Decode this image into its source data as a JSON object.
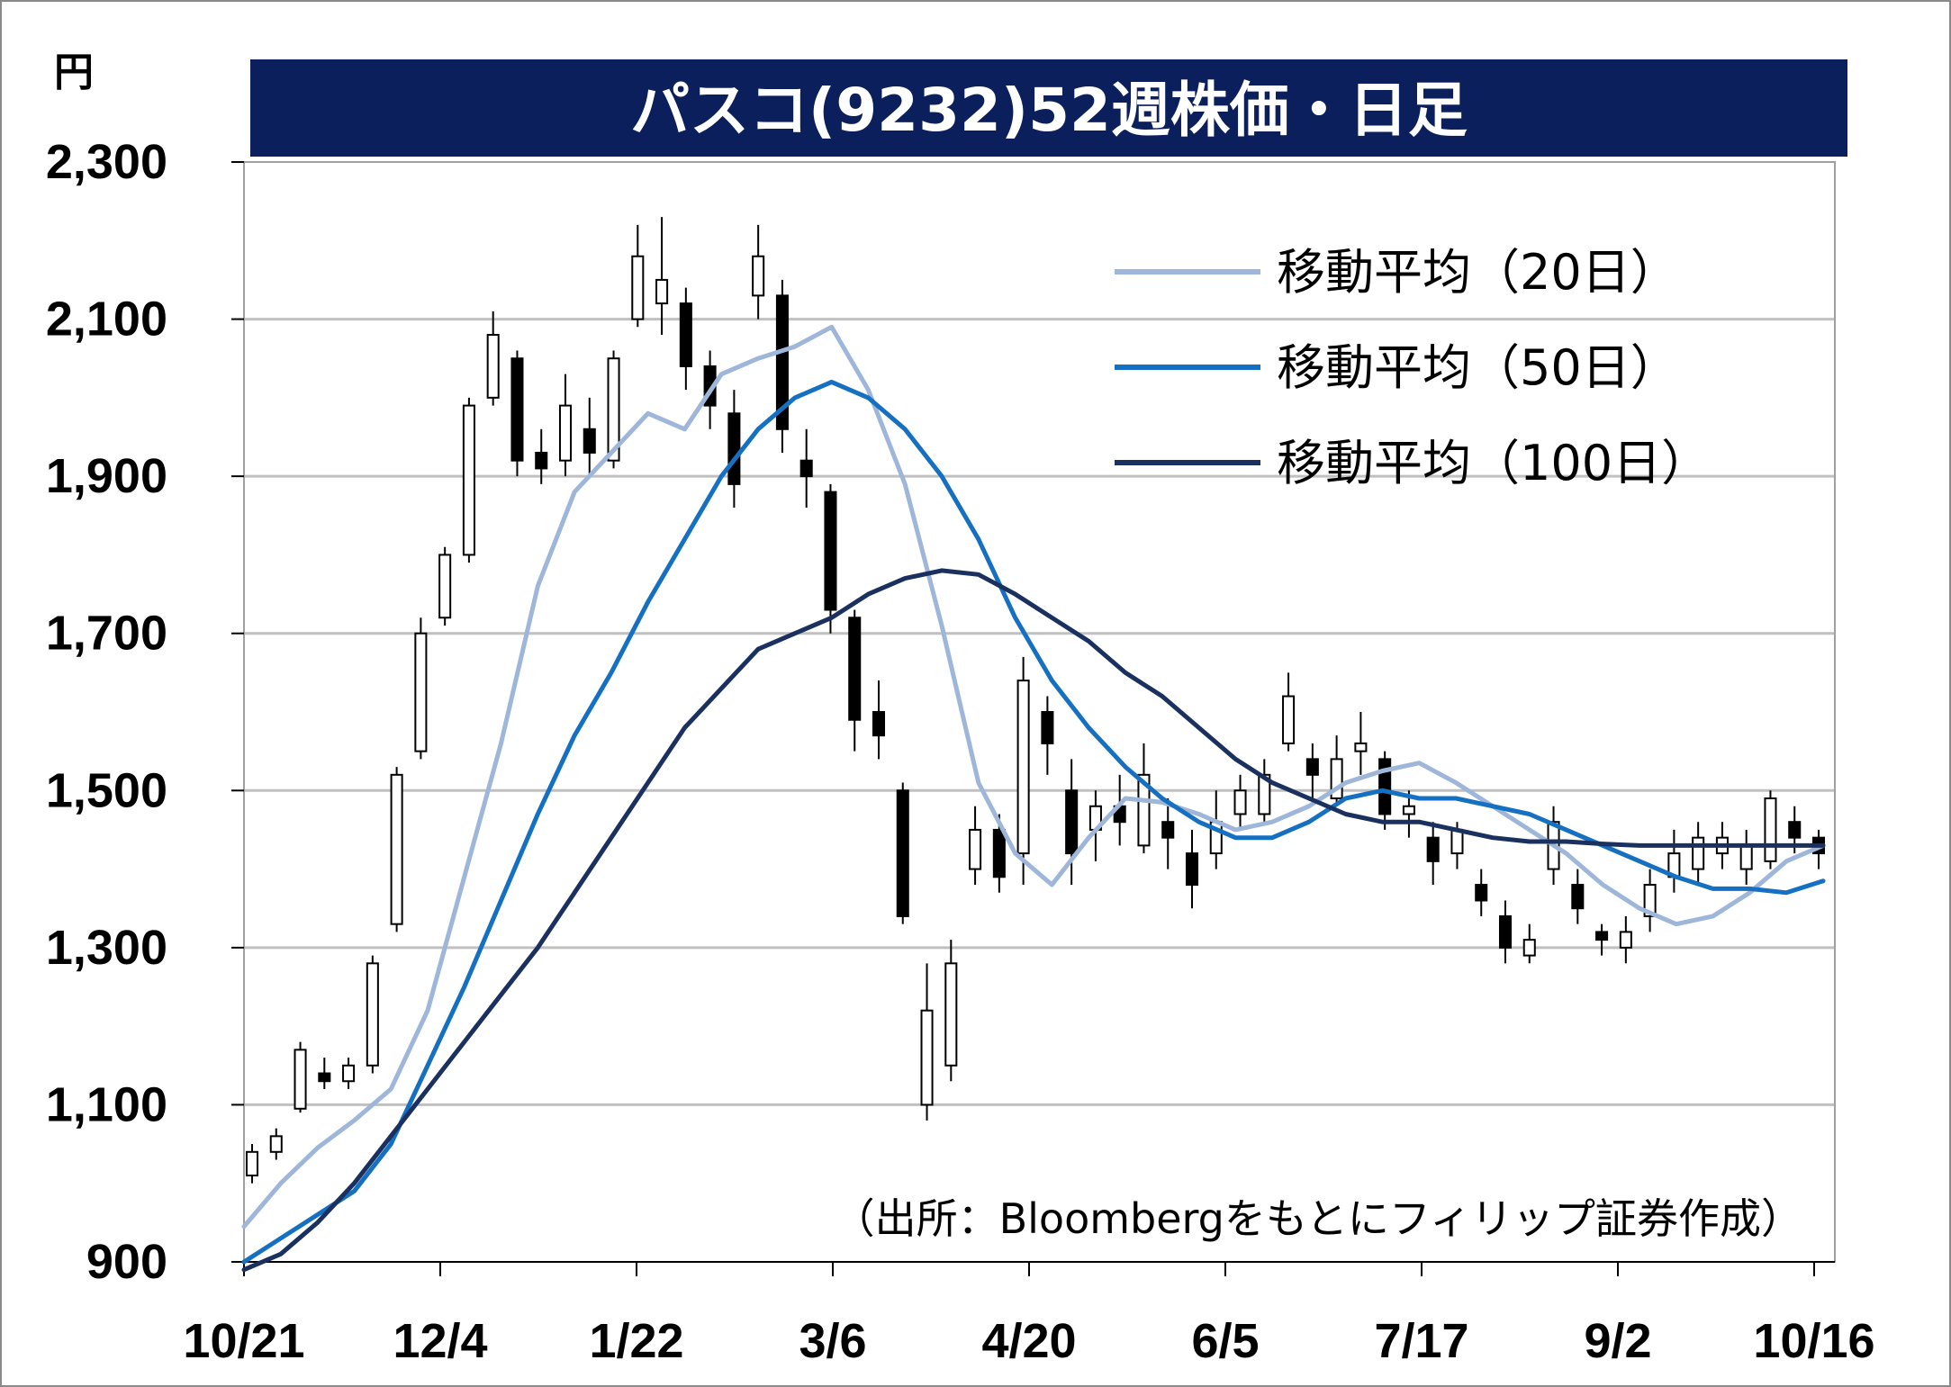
{
  "chart_data": {
    "type": "candlestick",
    "title": "パスコ(9232)52週株価・日足",
    "ylabel": "円",
    "source": "（出所：Bloombergをもとにフィリップ証券作成）",
    "ylim": [
      900,
      2300
    ],
    "y_ticks": [
      "2,300",
      "2,100",
      "1,900",
      "1,700",
      "1,500",
      "1,300",
      "1,100",
      "900"
    ],
    "x_ticks": [
      "10/21",
      "12/4",
      "1/22",
      "3/6",
      "4/20",
      "6/5",
      "7/17",
      "9/2",
      "10/16"
    ],
    "grid": true,
    "legend_position": "top-right",
    "colors": {
      "title_bg": "#0b1f5c",
      "ma20": "#9db6d9",
      "ma50": "#1670c1",
      "ma100": "#1a3160",
      "candle_up_fill": "#ffffff",
      "candle_down_fill": "#000000",
      "grid": "#c0c0c0"
    },
    "series": [
      {
        "name": "移動平均（20日）",
        "key": "ma20",
        "values": [
          945,
          1000,
          1045,
          1080,
          1120,
          1220,
          1390,
          1560,
          1760,
          1880,
          1930,
          1980,
          1960,
          2030,
          2050,
          2065,
          2090,
          2010,
          1890,
          1710,
          1510,
          1420,
          1380,
          1440,
          1490,
          1485,
          1470,
          1450,
          1460,
          1480,
          1510,
          1525,
          1535,
          1510,
          1480,
          1450,
          1420,
          1380,
          1350,
          1330,
          1340,
          1370,
          1410,
          1430
        ]
      },
      {
        "name": "移動平均（50日）",
        "key": "ma50",
        "values": [
          900,
          930,
          960,
          990,
          1050,
          1150,
          1250,
          1360,
          1470,
          1570,
          1650,
          1740,
          1820,
          1900,
          1960,
          2000,
          2020,
          2000,
          1960,
          1900,
          1820,
          1720,
          1640,
          1580,
          1530,
          1490,
          1460,
          1440,
          1440,
          1460,
          1490,
          1500,
          1490,
          1490,
          1480,
          1470,
          1450,
          1430,
          1410,
          1390,
          1375,
          1375,
          1370,
          1385
        ]
      },
      {
        "name": "移動平均（100日）",
        "key": "ma100",
        "values": [
          890,
          910,
          950,
          1000,
          1060,
          1120,
          1180,
          1240,
          1300,
          1370,
          1440,
          1510,
          1580,
          1630,
          1680,
          1700,
          1720,
          1750,
          1770,
          1780,
          1775,
          1750,
          1720,
          1690,
          1650,
          1620,
          1580,
          1540,
          1510,
          1490,
          1470,
          1460,
          1460,
          1450,
          1440,
          1435,
          1435,
          1432,
          1430,
          1430,
          1430,
          1430,
          1430,
          1430
        ]
      }
    ],
    "candles": [
      [
        1010,
        1040,
        1000,
        1050
      ],
      [
        1040,
        1060,
        1030,
        1070
      ],
      [
        1095,
        1170,
        1090,
        1180
      ],
      [
        1140,
        1130,
        1120,
        1160
      ],
      [
        1130,
        1150,
        1120,
        1160
      ],
      [
        1150,
        1280,
        1140,
        1290
      ],
      [
        1330,
        1520,
        1320,
        1530
      ],
      [
        1550,
        1700,
        1540,
        1720
      ],
      [
        1720,
        1800,
        1710,
        1810
      ],
      [
        1800,
        1990,
        1790,
        2000
      ],
      [
        2000,
        2080,
        1990,
        2110
      ],
      [
        2050,
        1920,
        1900,
        2060
      ],
      [
        1930,
        1910,
        1890,
        1960
      ],
      [
        1920,
        1990,
        1900,
        2030
      ],
      [
        1960,
        1930,
        1900,
        2000
      ],
      [
        1920,
        2050,
        1910,
        2060
      ],
      [
        2100,
        2180,
        2090,
        2220
      ],
      [
        2120,
        2150,
        2080,
        2230
      ],
      [
        2120,
        2040,
        2010,
        2140
      ],
      [
        2040,
        1990,
        1960,
        2060
      ],
      [
        1980,
        1890,
        1860,
        2010
      ],
      [
        2130,
        2180,
        2100,
        2220
      ],
      [
        2130,
        1960,
        1930,
        2150
      ],
      [
        1920,
        1900,
        1860,
        1960
      ],
      [
        1880,
        1730,
        1700,
        1890
      ],
      [
        1720,
        1590,
        1550,
        1730
      ],
      [
        1600,
        1570,
        1540,
        1640
      ],
      [
        1500,
        1340,
        1330,
        1510
      ],
      [
        1100,
        1220,
        1080,
        1280
      ],
      [
        1150,
        1280,
        1130,
        1310
      ],
      [
        1400,
        1450,
        1380,
        1480
      ],
      [
        1450,
        1390,
        1370,
        1470
      ],
      [
        1420,
        1640,
        1380,
        1670
      ],
      [
        1600,
        1560,
        1520,
        1620
      ],
      [
        1500,
        1420,
        1380,
        1540
      ],
      [
        1450,
        1480,
        1410,
        1500
      ],
      [
        1480,
        1460,
        1430,
        1520
      ],
      [
        1430,
        1520,
        1420,
        1560
      ],
      [
        1460,
        1440,
        1400,
        1490
      ],
      [
        1420,
        1380,
        1350,
        1450
      ],
      [
        1420,
        1460,
        1400,
        1500
      ],
      [
        1470,
        1500,
        1450,
        1520
      ],
      [
        1470,
        1520,
        1460,
        1540
      ],
      [
        1560,
        1620,
        1550,
        1650
      ],
      [
        1540,
        1520,
        1490,
        1560
      ],
      [
        1490,
        1540,
        1480,
        1570
      ],
      [
        1550,
        1560,
        1520,
        1600
      ],
      [
        1540,
        1470,
        1450,
        1550
      ],
      [
        1470,
        1480,
        1440,
        1500
      ],
      [
        1440,
        1410,
        1380,
        1460
      ],
      [
        1420,
        1450,
        1400,
        1460
      ],
      [
        1380,
        1360,
        1340,
        1400
      ],
      [
        1340,
        1300,
        1280,
        1360
      ],
      [
        1290,
        1310,
        1280,
        1330
      ],
      [
        1400,
        1460,
        1380,
        1480
      ],
      [
        1380,
        1350,
        1330,
        1400
      ],
      [
        1320,
        1310,
        1290,
        1330
      ],
      [
        1300,
        1320,
        1280,
        1340
      ],
      [
        1340,
        1380,
        1320,
        1400
      ],
      [
        1390,
        1420,
        1370,
        1450
      ],
      [
        1400,
        1440,
        1380,
        1460
      ],
      [
        1420,
        1440,
        1400,
        1460
      ],
      [
        1400,
        1430,
        1380,
        1450
      ],
      [
        1410,
        1490,
        1400,
        1500
      ],
      [
        1460,
        1440,
        1420,
        1480
      ],
      [
        1440,
        1420,
        1400,
        1450
      ]
    ]
  }
}
